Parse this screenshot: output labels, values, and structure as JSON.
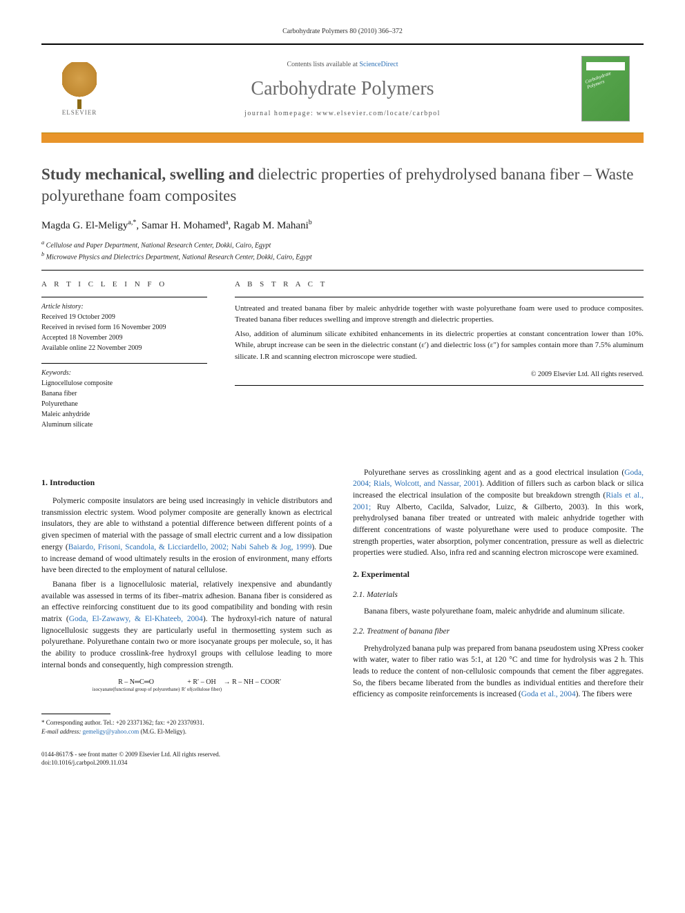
{
  "header_citation": "Carbohydrate Polymers 80 (2010) 366–372",
  "masthead": {
    "contents_prefix": "Contents lists available at ",
    "contents_link": "ScienceDirect",
    "journal": "Carbohydrate Polymers",
    "homepage_prefix": "journal homepage: ",
    "homepage_url": "www.elsevier.com/locate/carbpol",
    "publisher": "ELSEVIER",
    "cover_label": "Carbohydrate Polymers"
  },
  "article": {
    "title_part1": "Study mechanical, swelling and ",
    "title_part2": "dielectric properties of prehydrolysed banana fiber – Waste polyurethane foam composites",
    "authors_html": "Magda G. El-Meligy",
    "author1": "Magda G. El-Meligy",
    "author1_sup": "a,*",
    "author2": "Samar H. Mohamed",
    "author2_sup": "a",
    "author3": "Ragab M. Mahani",
    "author3_sup": "b",
    "affil_a": "Cellulose and Paper Department, National Research Center, Dokki, Cairo, Egypt",
    "affil_b": "Microwave Physics and Dielectrics Department, National Research Center, Dokki, Cairo, Egypt"
  },
  "info": {
    "label": "A R T I C L E   I N F O",
    "history_label": "Article history:",
    "received": "Received 19 October 2009",
    "revised": "Received in revised form 16 November 2009",
    "accepted": "Accepted 18 November 2009",
    "online": "Available online 22 November 2009",
    "keywords_label": "Keywords:",
    "kw1": "Lignocellulose composite",
    "kw2": "Banana fiber",
    "kw3": "Polyurethane",
    "kw4": "Maleic anhydride",
    "kw5": "Aluminum silicate"
  },
  "abstract": {
    "label": "A B S T R A C T",
    "p1": "Untreated and treated banana fiber by maleic anhydride together with waste polyurethane foam were used to produce composites. Treated banana fiber reduces swelling and improve strength and dielectric properties.",
    "p2": "Also, addition of aluminum silicate exhibited enhancements in its dielectric properties at constant concentration lower than 10%. While, abrupt increase can be seen in the dielectric constant (ε′) and dielectric loss (ε″) for samples contain more than 7.5% aluminum silicate. I.R and scanning electron microscope were studied.",
    "copyright": "© 2009 Elsevier Ltd. All rights reserved."
  },
  "body": {
    "intro_heading": "1. Introduction",
    "intro_p1a": "Polymeric composite insulators are being used increasingly in vehicle distributors and transmission electric system. Wood polymer composite are generally known as electrical insulators, they are able to withstand a potential difference between different points of a given specimen of material with the passage of small electric current and a low dissipation energy (",
    "intro_p1_cite": "Baiardo, Frisoni, Scandola, & Licciardello, 2002; Nabi Saheb & Jog, 1999",
    "intro_p1b": "). Due to increase demand of wood ultimately results in the erosion of environment, many efforts have been directed to the employment of natural cellulose.",
    "intro_p2a": "Banana fiber is a lignocellulosic material, relatively inexpensive and abundantly available was assessed in terms of its fiber–matrix adhesion. Banana fiber is considered as an effective reinforcing constituent due to its good compatibility and bonding with resin matrix (",
    "intro_p2_cite": "Goda, El-Zawawy, & El-Khateeb, 2004",
    "intro_p2b": "). The hydroxyl-rich nature of natural lignocellulosic suggests they are particularly useful in thermosetting system such as polyurethane. Polyurethane contain two or more isocyanate groups per molecule, so, it has the ability to produce crosslink-free hydroxyl groups with cellulose leading to more internal bonds and consequently, high compression strength.",
    "equation_left": "R – N═C═O",
    "equation_left_sub": "isocyanate(functional group of polyurethane)",
    "equation_mid": " + R′ – OH",
    "equation_mid_sub": "R′ of(cellulose fiber)",
    "equation_right": " → R – NH – COOR′",
    "col2_p1a": "Polyurethane serves as crosslinking agent and as a good electrical insulation (",
    "col2_p1_cite1": "Goda, 2004; Rials, Wolcott, and Nassar, 2001",
    "col2_p1b": "). Addition of fillers such as carbon black or silica increased the electrical insulation of the composite but breakdown strength (",
    "col2_p1_cite2": "Rials et al., 2001;",
    "col2_p1c": " Ruy Alberto, Cacilda, Salvador, Luizc, & Gilberto, 2003). In this work, prehydrolysed banana fiber treated or untreated with maleic anhydride together with different concentrations of waste polyurethane were used to produce composite. The strength properties, water absorption, polymer concentration, pressure as well as dielectric properties were studied. Also, infra red and scanning electron microscope were examined.",
    "exp_heading": "2. Experimental",
    "materials_heading": "2.1. Materials",
    "materials_p": "Banana fibers, waste polyurethane foam, maleic anhydride and aluminum silicate.",
    "treatment_heading": "2.2. Treatment of banana fiber",
    "treatment_p_a": "Prehydrolyzed banana pulp was prepared from banana pseudostem using XPress cooker with water, water to fiber ratio was 5:1, at 120 °C and time for hydrolysis was 2 h. This leads to reduce the content of non-cellulosic compounds that cement the fiber aggregates. So, the fibers became liberated from the bundles as individual entities and therefore their efficiency as composite reinforcements is increased (",
    "treatment_cite": "Goda et al., 2004",
    "treatment_p_b": "). The fibers were"
  },
  "footnote": {
    "corresponding": "* Corresponding author. Tel.: +20 23371362; fax: +20 23370931.",
    "email_label": "E-mail address:",
    "email": "gemeligy@yahoo.com",
    "email_owner": "(M.G. El-Meligy)."
  },
  "footer": {
    "issn": "0144-8617/$ - see front matter © 2009 Elsevier Ltd. All rights reserved.",
    "doi": "doi:10.1016/j.carbpol.2009.11.034"
  }
}
